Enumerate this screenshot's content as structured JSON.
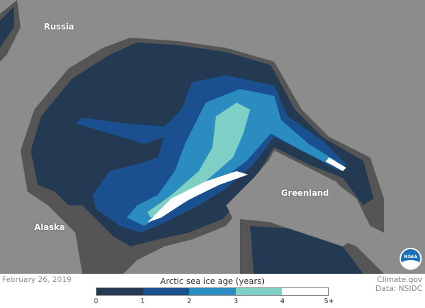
{
  "map": {
    "labels": {
      "russia": "Russia",
      "alaska": "Alaska",
      "greenland": "Greenland"
    },
    "colors": {
      "land": "#8c8c8c",
      "open_water": "#555555",
      "ice_0_1": "#243a52",
      "ice_1_2": "#1a5090",
      "ice_2_3": "#2b8cc0",
      "ice_3_4": "#7ecfc6",
      "ice_4_5": "#ffffff"
    }
  },
  "footer": {
    "date": "February 26, 2019",
    "credit": "Climate.gov",
    "data_source": "Data: NSIDC"
  },
  "legend": {
    "title": "Arctic sea ice age (years)",
    "ticks": [
      "0",
      "1",
      "2",
      "3",
      "4",
      "5+"
    ],
    "colors": [
      "#243a52",
      "#1a5090",
      "#2b8cc0",
      "#7ecfc6",
      "#ffffff"
    ]
  },
  "logo": {
    "text": "NOAA"
  }
}
